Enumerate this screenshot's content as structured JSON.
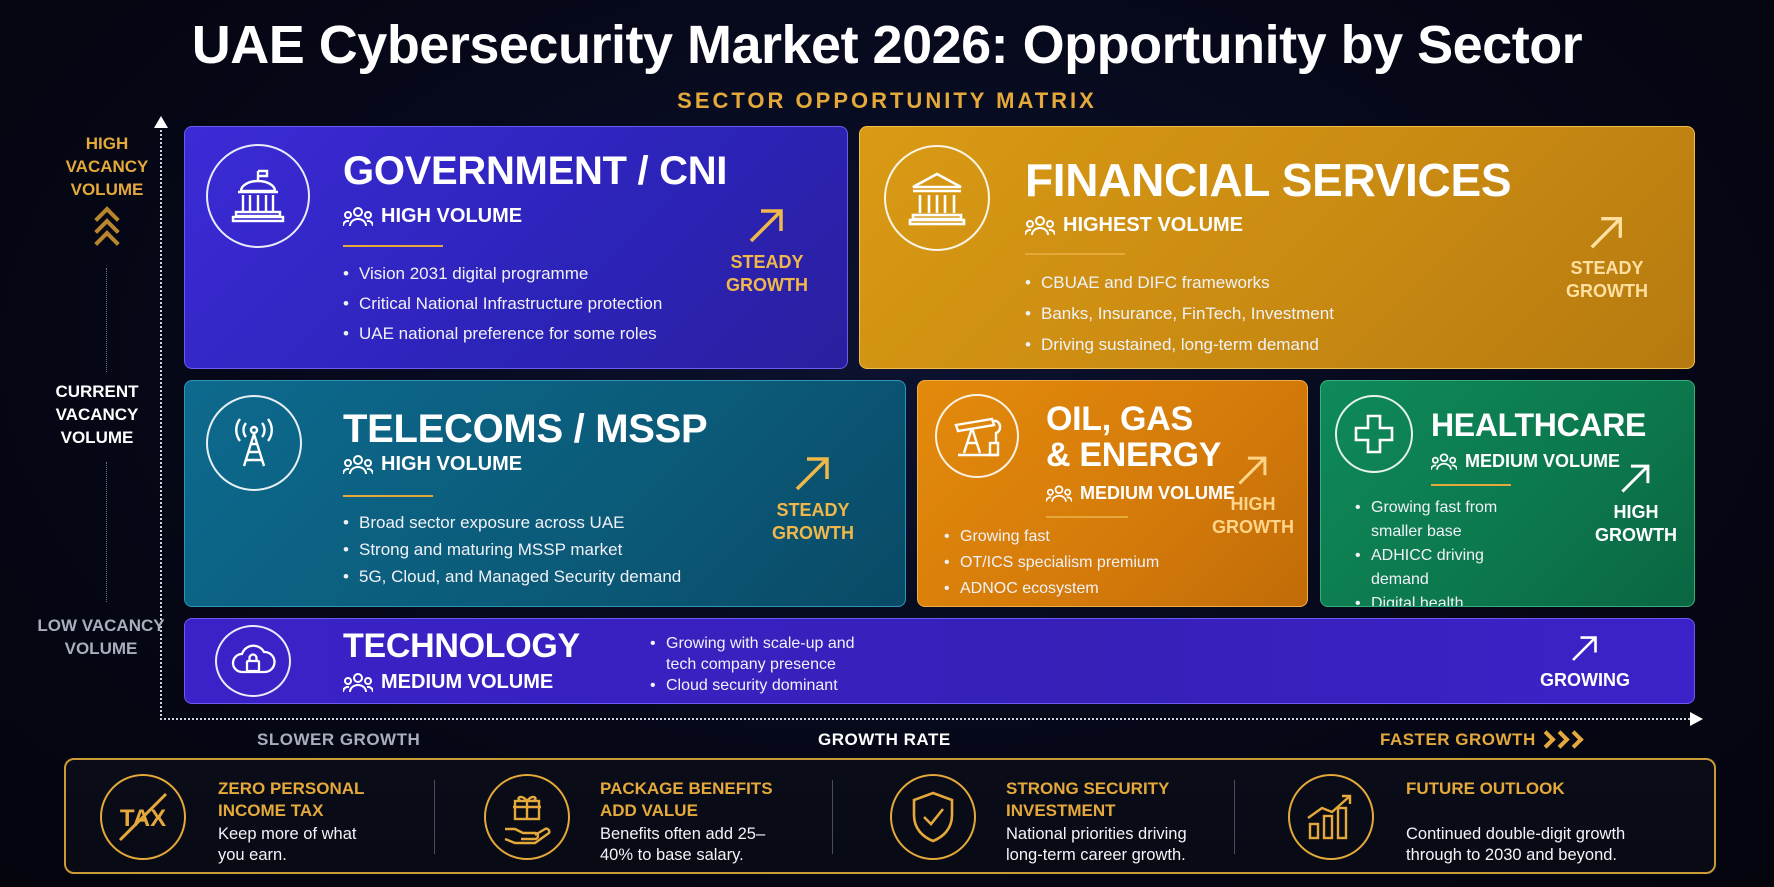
{
  "header": {
    "title": "UAE Cybersecurity Market 2026: Opportunity by Sector",
    "subtitle": "SECTOR OPPORTUNITY MATRIX"
  },
  "axes": {
    "y_high": "HIGH VACANCY VOLUME",
    "y_current": "CURRENT VACANCY VOLUME",
    "y_low": "LOW VACANCY VOLUME",
    "x_slow": "SLOWER GROWTH",
    "x_label": "GROWTH RATE",
    "x_fast": "FASTER GROWTH"
  },
  "sectors": {
    "government": {
      "title": "GOVERNMENT / CNI",
      "volume": "HIGH VOLUME",
      "bullets": [
        "Vision 2031 digital programme",
        "Critical National Infrastructure protection",
        "UAE national preference for some roles"
      ],
      "growth_line1": "STEADY",
      "growth_line2": "GROWTH",
      "icon": "government-building-icon",
      "color": "#3b2bd6"
    },
    "financial": {
      "title": "FINANCIAL SERVICES",
      "volume": "HIGHEST VOLUME",
      "bullets": [
        "CBUAE and DIFC frameworks",
        "Banks, Insurance, FinTech, Investment",
        "Driving sustained, long-term demand"
      ],
      "growth_line1": "STEADY",
      "growth_line2": "GROWTH",
      "icon": "bank-icon",
      "color": "#d99a14"
    },
    "telecoms": {
      "title": "TELECOMS / MSSP",
      "volume": "HIGH VOLUME",
      "bullets": [
        "Broad sector exposure across UAE",
        "Strong and maturing MSSP market",
        "5G, Cloud, and Managed Security demand"
      ],
      "growth_line1": "STEADY",
      "growth_line2": "GROWTH",
      "icon": "antenna-tower-icon",
      "color": "#0d6a8e"
    },
    "oil": {
      "title_line1": "OIL, GAS",
      "title_line2": "& ENERGY",
      "volume": "MEDIUM VOLUME",
      "bullets": [
        "Growing fast",
        "OT/ICS specialism premium",
        "ADNOC ecosystem"
      ],
      "growth_line1": "HIGH",
      "growth_line2": "GROWTH",
      "icon": "oil-pump-icon",
      "color": "#e38a0c"
    },
    "healthcare": {
      "title": "HEALTHCARE",
      "volume": "MEDIUM VOLUME",
      "bullets": [
        "Growing fast from smaller base",
        "ADHICC driving demand",
        "Digital health investment"
      ],
      "growth_line1": "HIGH",
      "growth_line2": "GROWTH",
      "icon": "medical-cross-icon",
      "color": "#0f8a5a"
    },
    "technology": {
      "title": "TECHNOLOGY",
      "volume": "MEDIUM VOLUME",
      "bullets": [
        "Growing with scale-up and tech company presence",
        "Cloud security dominant"
      ],
      "growth": "GROWING",
      "icon": "cloud-lock-icon",
      "color": "#3a22c8"
    }
  },
  "benefits": [
    {
      "head": "ZERO PERSONAL INCOME TAX",
      "text": "Keep more of what you earn.",
      "icon": "no-tax-icon",
      "icon_text": "TAX"
    },
    {
      "head": "PACKAGE BENEFITS ADD VALUE",
      "text": "Benefits often add 25–40% to base salary.",
      "icon": "gift-hand-icon"
    },
    {
      "head": "STRONG SECURITY INVESTMENT",
      "text": "National priorities driving long-term career growth.",
      "icon": "shield-check-icon"
    },
    {
      "head": "FUTURE OUTLOOK",
      "text": "Continued double-digit growth through to 2030 and beyond.",
      "icon": "growth-chart-icon"
    }
  ],
  "colors": {
    "accent": "#e4a93a",
    "background": "#060818"
  }
}
